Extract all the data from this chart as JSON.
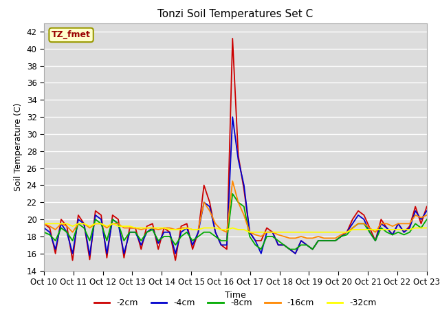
{
  "title": "Tonzi Soil Temperatures Set C",
  "xlabel": "Time",
  "ylabel": "Soil Temperature (C)",
  "ylim": [
    14,
    43
  ],
  "yticks": [
    14,
    16,
    18,
    20,
    22,
    24,
    26,
    28,
    30,
    32,
    34,
    36,
    38,
    40,
    42
  ],
  "xtick_labels": [
    "Oct 10",
    "Oct 11",
    "Oct 12",
    "Oct 13",
    "Oct 14",
    "Oct 15",
    "Oct 16",
    "Oct 17",
    "Oct 18",
    "Oct 19",
    "Oct 20",
    "Oct 21",
    "Oct 22",
    "Oct 23"
  ],
  "legend_entries": [
    "-2cm",
    "-4cm",
    "-8cm",
    "-16cm",
    "-32cm"
  ],
  "legend_colors": [
    "#cc0000",
    "#0000cc",
    "#00aa00",
    "#ff8800",
    "#ffff00"
  ],
  "annotation_label": "TZ_fmet",
  "annotation_color": "#990000",
  "annotation_bg": "#ffffcc",
  "annotation_border": "#999900",
  "background_color": "#dcdcdc",
  "line_colors": [
    "#cc0000",
    "#0000cc",
    "#00aa00",
    "#ff8800",
    "#ffff00"
  ],
  "series": {
    "cm2": [
      19.5,
      19.0,
      16.0,
      20.0,
      19.2,
      15.2,
      20.5,
      19.5,
      15.3,
      21.0,
      20.5,
      15.5,
      20.5,
      20.0,
      15.5,
      19.0,
      19.0,
      16.5,
      19.2,
      19.5,
      16.5,
      19.0,
      18.5,
      15.2,
      19.2,
      19.5,
      16.5,
      18.5,
      24.0,
      22.0,
      18.5,
      17.0,
      16.5,
      41.2,
      27.5,
      23.5,
      18.5,
      17.5,
      17.5,
      19.0,
      18.5,
      17.0,
      17.0,
      16.5,
      16.0,
      17.5,
      17.0,
      16.5,
      17.5,
      17.5,
      17.5,
      17.5,
      18.0,
      18.5,
      20.0,
      21.0,
      20.5,
      19.0,
      17.5,
      20.0,
      19.0,
      18.2,
      19.5,
      18.5,
      19.2,
      21.5,
      19.5,
      21.5
    ],
    "cm4": [
      19.0,
      18.5,
      16.5,
      19.5,
      18.5,
      16.0,
      20.0,
      19.5,
      15.8,
      20.5,
      20.0,
      16.0,
      20.0,
      19.5,
      16.0,
      18.5,
      18.5,
      17.0,
      18.5,
      19.0,
      17.2,
      18.5,
      18.5,
      16.0,
      18.5,
      19.0,
      17.0,
      18.5,
      22.0,
      21.5,
      18.5,
      17.0,
      17.0,
      32.0,
      27.0,
      24.0,
      18.5,
      17.5,
      16.0,
      18.5,
      18.5,
      17.0,
      17.0,
      16.5,
      16.0,
      17.5,
      17.0,
      16.5,
      17.5,
      17.5,
      17.5,
      17.5,
      18.0,
      18.5,
      19.5,
      20.5,
      20.0,
      18.5,
      17.5,
      19.5,
      19.0,
      18.2,
      19.5,
      18.5,
      19.0,
      21.0,
      20.0,
      21.0
    ],
    "cm8": [
      18.5,
      18.2,
      17.5,
      19.0,
      18.5,
      17.5,
      19.5,
      19.0,
      17.5,
      20.0,
      19.5,
      17.5,
      20.0,
      19.5,
      17.5,
      18.5,
      18.5,
      17.5,
      18.5,
      18.8,
      17.5,
      18.0,
      18.0,
      17.0,
      18.0,
      18.5,
      17.5,
      18.0,
      18.5,
      18.5,
      18.0,
      17.5,
      17.5,
      23.0,
      22.0,
      21.5,
      18.0,
      17.0,
      16.5,
      18.0,
      18.0,
      17.5,
      17.0,
      16.5,
      16.5,
      17.0,
      17.0,
      16.5,
      17.5,
      17.5,
      17.5,
      17.5,
      18.0,
      18.2,
      19.0,
      19.5,
      19.5,
      18.5,
      17.5,
      19.0,
      18.5,
      18.2,
      18.5,
      18.2,
      18.5,
      19.5,
      19.0,
      20.0
    ],
    "cm16": [
      19.5,
      19.2,
      18.8,
      19.5,
      19.2,
      18.5,
      19.5,
      19.5,
      19.0,
      19.5,
      19.5,
      19.0,
      19.5,
      19.5,
      19.0,
      19.0,
      19.0,
      18.8,
      19.0,
      19.0,
      18.8,
      19.0,
      19.0,
      18.8,
      19.0,
      19.0,
      18.8,
      18.8,
      22.0,
      21.0,
      19.5,
      18.8,
      18.5,
      24.5,
      22.0,
      20.5,
      18.5,
      18.2,
      18.0,
      18.5,
      18.5,
      18.2,
      18.0,
      17.8,
      17.8,
      18.0,
      17.8,
      17.8,
      18.0,
      17.8,
      17.8,
      17.8,
      18.2,
      18.5,
      19.0,
      19.5,
      19.5,
      19.0,
      18.5,
      19.5,
      19.5,
      19.2,
      19.5,
      19.5,
      19.5,
      20.5,
      20.2,
      20.5
    ],
    "cm32": [
      19.5,
      19.5,
      19.5,
      19.5,
      19.5,
      19.2,
      19.5,
      19.5,
      19.2,
      19.5,
      19.5,
      19.2,
      19.5,
      19.2,
      19.2,
      19.2,
      19.0,
      19.0,
      19.0,
      19.0,
      19.0,
      19.0,
      18.8,
      18.8,
      18.8,
      19.0,
      18.8,
      18.8,
      19.0,
      19.0,
      19.0,
      18.8,
      18.8,
      19.0,
      18.8,
      18.8,
      18.5,
      18.5,
      18.5,
      18.5,
      18.5,
      18.5,
      18.5,
      18.5,
      18.5,
      18.5,
      18.5,
      18.5,
      18.5,
      18.5,
      18.5,
      18.5,
      18.5,
      18.5,
      18.8,
      18.8,
      18.8,
      18.8,
      18.8,
      18.8,
      18.8,
      18.8,
      18.8,
      18.8,
      18.8,
      19.0,
      19.0,
      19.0
    ]
  }
}
